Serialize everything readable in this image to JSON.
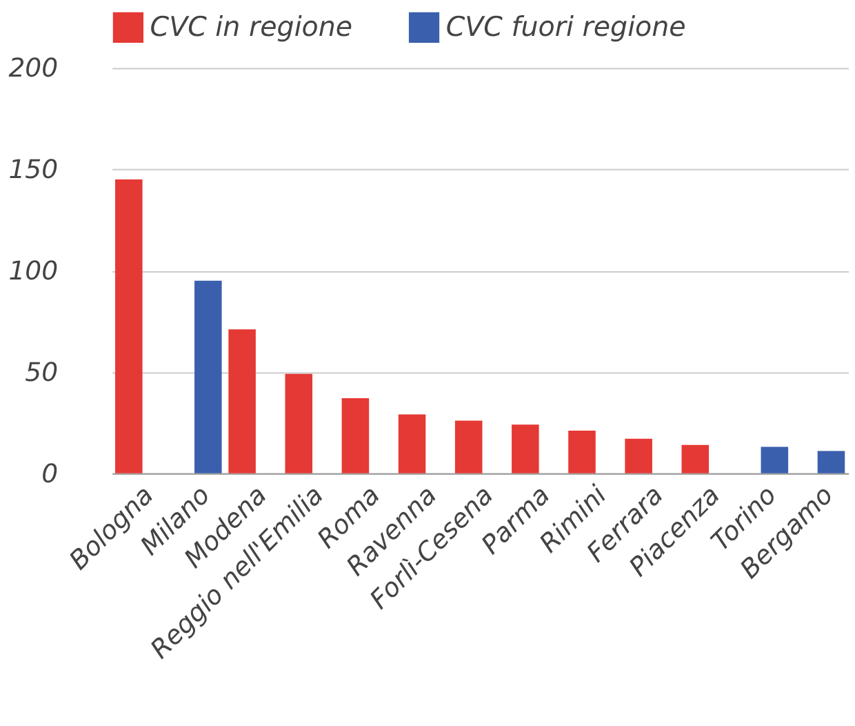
{
  "chart_data": {
    "type": "bar",
    "categories": [
      "Bologna",
      "Milano",
      "Modena",
      "Reggio nell'Emilia",
      "Roma",
      "Ravenna",
      "Forlì-Cesena",
      "Parma",
      "Rimini",
      "Ferrara",
      "Piacenza",
      "Torino",
      "Bergamo"
    ],
    "series": [
      {
        "name": "CVC in regione",
        "color": "#e53935",
        "values": [
          145,
          null,
          71,
          49,
          37,
          29,
          26,
          24,
          21,
          17,
          14,
          null,
          null
        ]
      },
      {
        "name": "CVC fuori regione",
        "color": "#3a5fad",
        "values": [
          null,
          95,
          null,
          null,
          null,
          null,
          null,
          null,
          null,
          null,
          null,
          13,
          11
        ]
      }
    ],
    "ylim": [
      0,
      200
    ],
    "yticks": [
      0,
      50,
      100,
      150,
      200
    ],
    "grid": "y",
    "legend": "top"
  }
}
